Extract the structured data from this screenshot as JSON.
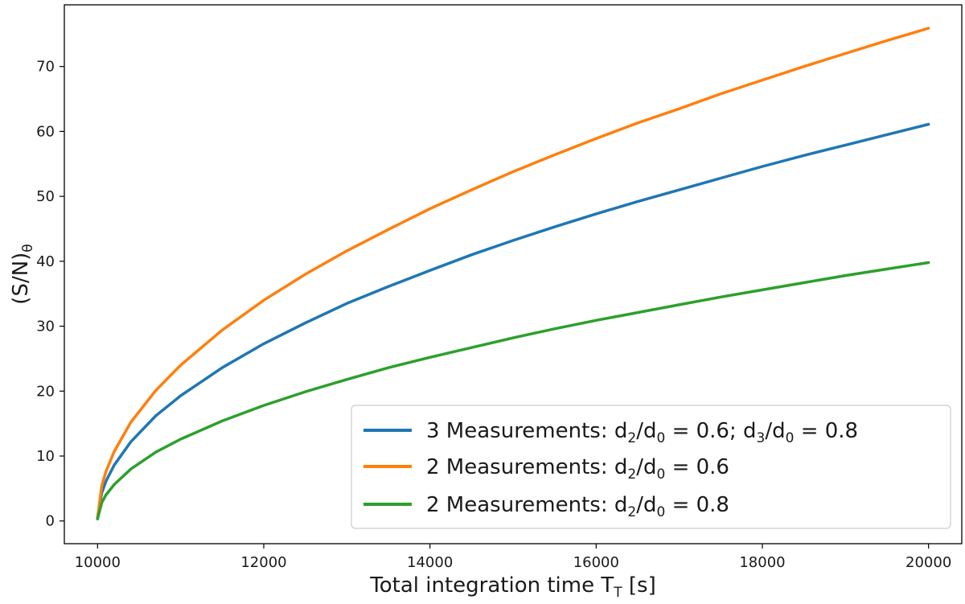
{
  "chart_data": {
    "type": "line",
    "xlabel": {
      "main": "Total integration time T",
      "sub": "T",
      "unit": " [s]"
    },
    "ylabel": {
      "main": "(S/N)",
      "sub": "θ"
    },
    "xlim": [
      9600,
      20400
    ],
    "ylim": [
      -3.5,
      79.5
    ],
    "xticks": [
      10000,
      12000,
      14000,
      16000,
      18000,
      20000
    ],
    "yticks": [
      0,
      10,
      20,
      30,
      40,
      50,
      60,
      70
    ],
    "grid": false,
    "legend_position": "lower-right",
    "series": [
      {
        "name": "3 Measurements: d2/d0 = 0.6; d3/d0 = 0.8",
        "legend_parts": {
          "prefix": "3 Measurements: d",
          "s1": "2",
          "m1": "/d",
          "s2": "0",
          "m2": " = 0.6; d",
          "s3": "3",
          "m3": "/d",
          "s4": "0",
          "suffix": " = 0.8"
        },
        "color": "#1f77b4",
        "x": [
          10000,
          10050,
          10100,
          10200,
          10400,
          10700,
          11000,
          11500,
          12000,
          12500,
          13000,
          13500,
          14000,
          14500,
          15000,
          15500,
          16000,
          16500,
          17000,
          17500,
          18000,
          18500,
          19000,
          19500,
          20000
        ],
        "y": [
          0.5,
          4.3,
          6.1,
          8.6,
          12.2,
          16.2,
          19.3,
          23.6,
          27.3,
          30.5,
          33.5,
          36.1,
          38.6,
          41.0,
          43.2,
          45.3,
          47.3,
          49.2,
          51.0,
          52.8,
          54.6,
          56.3,
          57.9,
          59.5,
          61.1
        ]
      },
      {
        "name": "2 Measurements: d2/d0 = 0.6",
        "legend_parts": {
          "prefix": "2 Measurements: d",
          "s1": "2",
          "m1": "/d",
          "s2": "0",
          "suffix": " = 0.6"
        },
        "color": "#ff7f0e",
        "x": [
          10000,
          10050,
          10100,
          10200,
          10400,
          10700,
          11000,
          11500,
          12000,
          12500,
          13000,
          13500,
          14000,
          14500,
          15000,
          15500,
          16000,
          16500,
          17000,
          17500,
          18000,
          18500,
          19000,
          19500,
          20000
        ],
        "y": [
          0.5,
          5.4,
          7.6,
          10.7,
          15.2,
          20.1,
          24.0,
          29.4,
          34.0,
          38.0,
          41.6,
          44.9,
          48.1,
          51.0,
          53.8,
          56.4,
          58.9,
          61.3,
          63.5,
          65.8,
          67.9,
          70.0,
          72.0,
          74.0,
          75.9
        ]
      },
      {
        "name": "2 Measurements: d2/d0 = 0.8",
        "legend_parts": {
          "prefix": "2 Measurements: d",
          "s1": "2",
          "m1": "/d",
          "s2": "0",
          "suffix": " = 0.8"
        },
        "color": "#2ca02c",
        "x": [
          10000,
          10050,
          10100,
          10200,
          10400,
          10700,
          11000,
          11500,
          12000,
          12500,
          13000,
          13500,
          14000,
          14500,
          15000,
          15500,
          16000,
          16500,
          17000,
          17500,
          18000,
          18500,
          19000,
          19500,
          20000
        ],
        "y": [
          0.3,
          2.8,
          4.0,
          5.6,
          8.0,
          10.6,
          12.6,
          15.4,
          17.8,
          19.9,
          21.8,
          23.6,
          25.2,
          26.7,
          28.2,
          29.6,
          30.9,
          32.1,
          33.3,
          34.5,
          35.6,
          36.7,
          37.8,
          38.8,
          39.8
        ]
      }
    ]
  }
}
